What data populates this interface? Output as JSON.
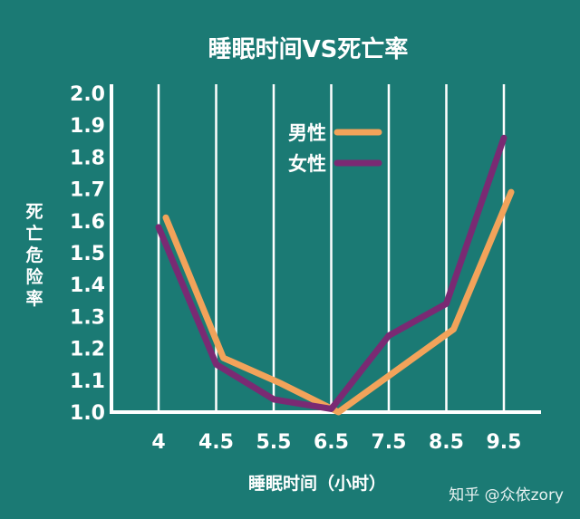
{
  "colors": {
    "background": "#1b7a74",
    "grid": "#ffffff",
    "axis": "#ffffff",
    "text": "#ffffff",
    "male": "#f2a35a",
    "female": "#7a2a73"
  },
  "watermark": "知乎 @众依zory",
  "chart_data": {
    "type": "line",
    "title": "睡眠时间VS死亡率",
    "xlabel": "睡眠时间（小时）",
    "ylabel": "死亡危险率",
    "categories": [
      "4",
      "4.5",
      "5.5",
      "6.5",
      "7.5",
      "8.5",
      "9.5"
    ],
    "yticks": [
      "1.0",
      "1.1",
      "1.2",
      "1.3",
      "1.4",
      "1.5",
      "1.6",
      "1.7",
      "1.8",
      "1.9",
      "2.0"
    ],
    "ylim": [
      1.0,
      2.0
    ],
    "grid": "vertical",
    "legend_position": "top-center",
    "series": [
      {
        "name": "男性",
        "color": "#f2a35a",
        "values": [
          1.61,
          1.17,
          1.09,
          1.0,
          1.13,
          1.26,
          1.69
        ]
      },
      {
        "name": "女性",
        "color": "#7a2a73",
        "values": [
          1.58,
          1.15,
          1.04,
          1.01,
          1.24,
          1.34,
          1.86
        ]
      }
    ]
  }
}
